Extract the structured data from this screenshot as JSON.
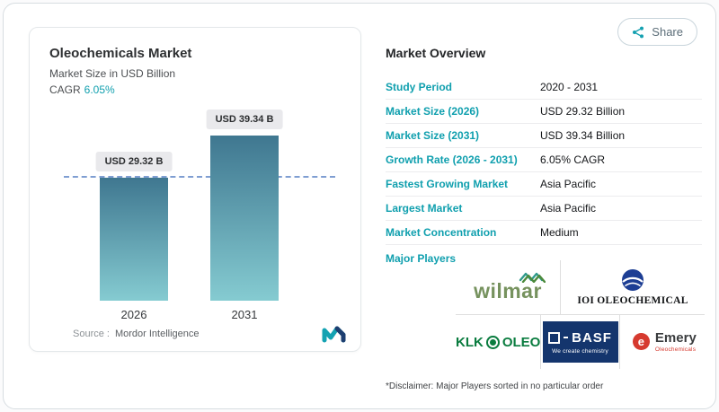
{
  "colors": {
    "accent": "#0f9fae",
    "bar_top": "#3f7790",
    "bar_bottom": "#85cbd1",
    "refline": "#7f9ed2",
    "wilmar_green": "#76925e",
    "klk_green": "#0a7c3f",
    "basf_navy": "#14356d",
    "emery_red": "#d63a2f"
  },
  "share": {
    "label": "Share"
  },
  "chart_card": {
    "title": "Oleochemicals Market",
    "subtitle": "Market Size in USD Billion",
    "cagr_label": "CAGR",
    "cagr_value": "6.05%",
    "source_label": "Source :",
    "source_value": "Mordor Intelligence"
  },
  "chart_data": {
    "type": "bar",
    "title": "Oleochemicals Market",
    "ylabel": "Market Size in USD Billion",
    "categories": [
      "2026",
      "2031"
    ],
    "values": [
      29.32,
      39.34
    ],
    "value_labels": [
      "USD 29.32 B",
      "USD 39.34 B"
    ],
    "ylim": [
      0,
      45
    ],
    "reference_line": 29.32,
    "grid": false,
    "legend": false
  },
  "overview": {
    "title": "Market Overview",
    "rows": [
      {
        "label": "Study Period",
        "value": "2020 - 2031"
      },
      {
        "label": "Market Size (2026)",
        "value": "USD 29.32 Billion"
      },
      {
        "label": "Market Size (2031)",
        "value": "USD 39.34 Billion"
      },
      {
        "label": "Growth Rate (2026 - 2031)",
        "value": "6.05% CAGR"
      },
      {
        "label": "Fastest Growing Market",
        "value": "Asia Pacific"
      },
      {
        "label": "Largest Market",
        "value": "Asia Pacific"
      },
      {
        "label": "Market Concentration",
        "value": "Medium"
      }
    ],
    "major_players_label": "Major Players",
    "players": {
      "wilmar": {
        "wordmark": "wilmar"
      },
      "ioi": {
        "wordmark": "IOI OLEOCHEMICAL"
      },
      "klk": {
        "wordmark_left": "KLK",
        "wordmark_right": "OLEO"
      },
      "basf": {
        "wordmark": "BASF",
        "tagline": "We create chemistry"
      },
      "emery": {
        "icon_letter": "e",
        "wordmark": "Emery",
        "sub": "Oleochemicals"
      }
    },
    "disclaimer": "*Disclaimer: Major Players sorted in no particular order"
  }
}
